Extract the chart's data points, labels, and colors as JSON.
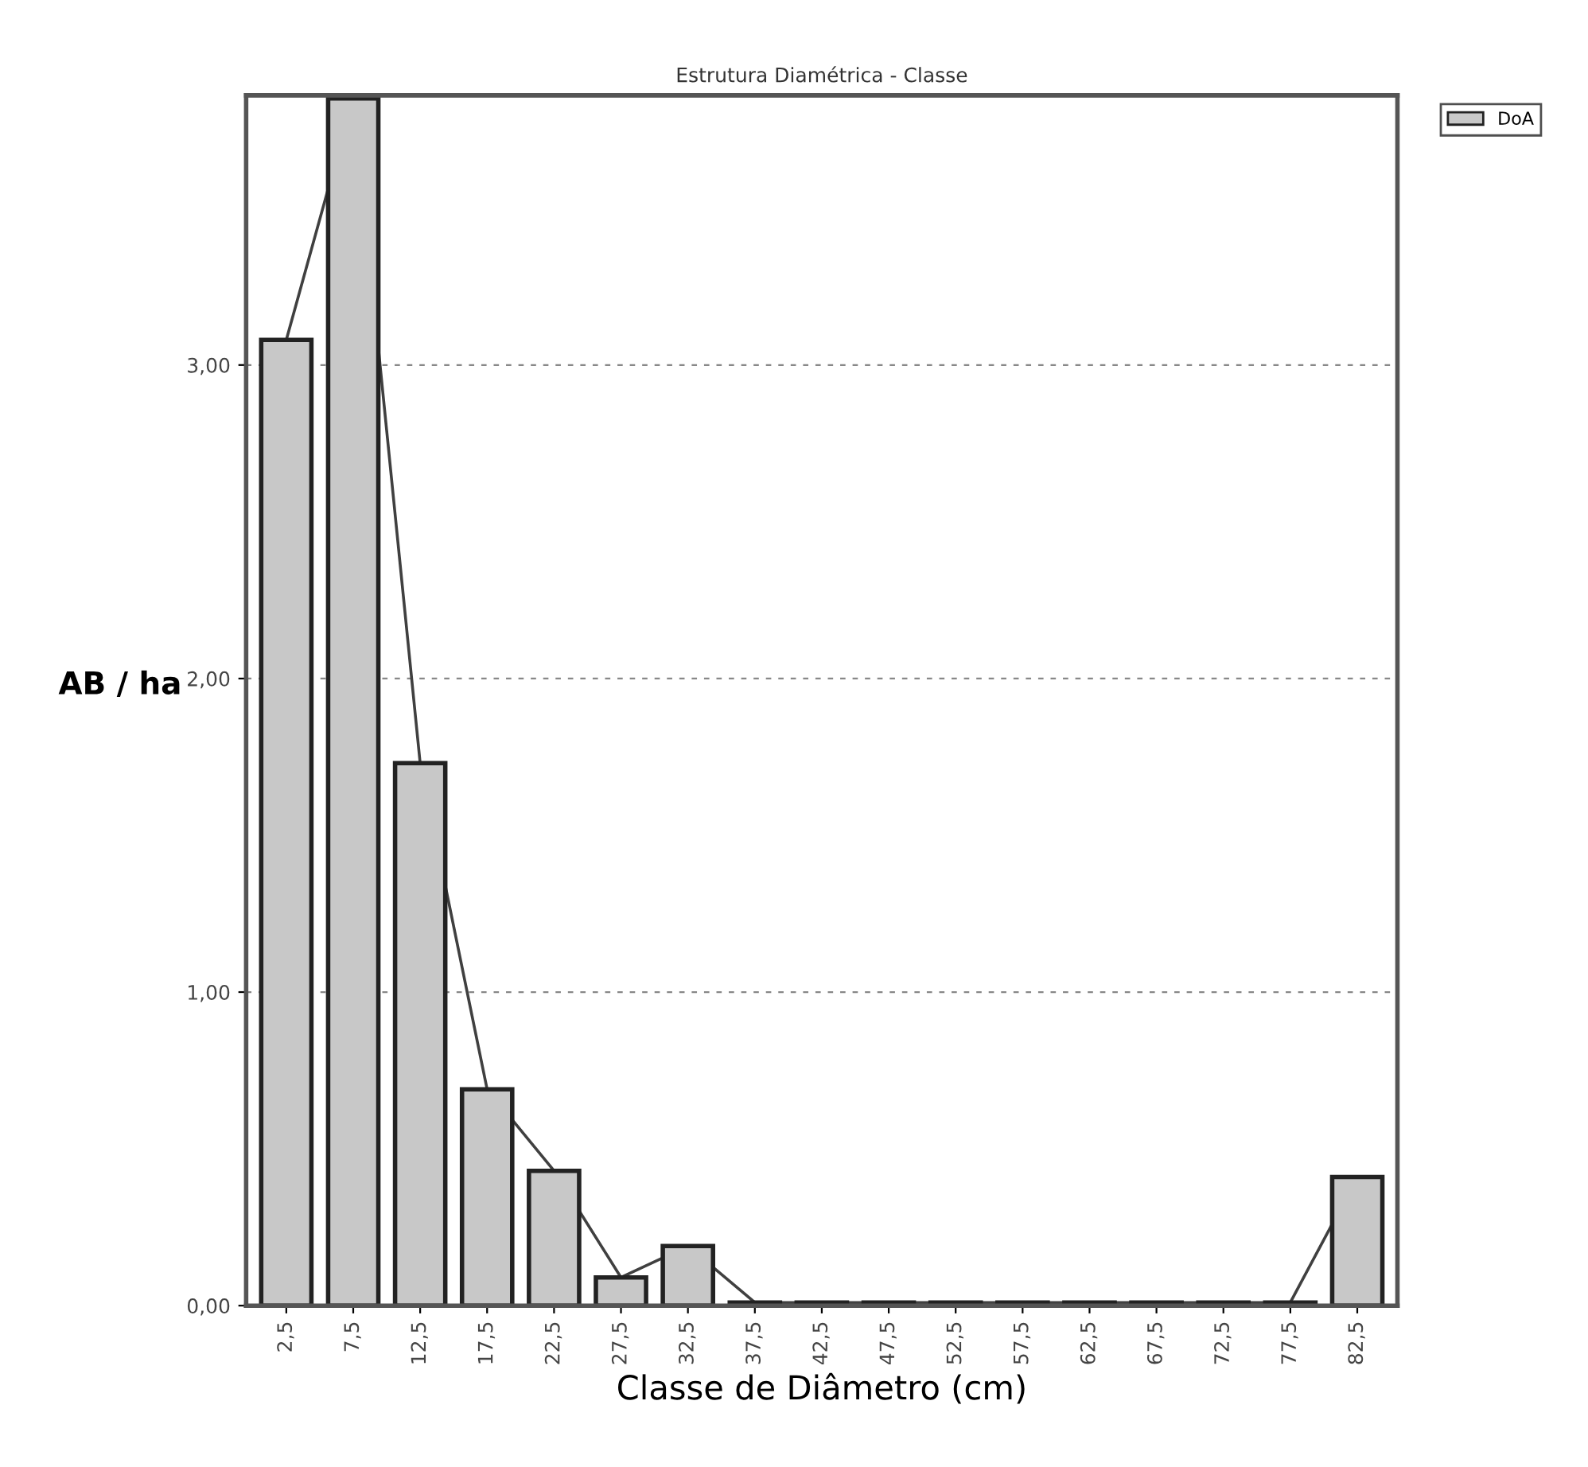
{
  "chart_data": {
    "type": "bar",
    "title": "Estrutura Diamétrica - Classe",
    "xlabel": "Classe de Diâmetro (cm)",
    "ylabel": "AB / ha",
    "categories": [
      "2,5",
      "7,5",
      "12,5",
      "17,5",
      "22,5",
      "27,5",
      "32,5",
      "37,5",
      "42,5",
      "47,5",
      "52,5",
      "57,5",
      "62,5",
      "67,5",
      "72,5",
      "77,5",
      "82,5"
    ],
    "series": [
      {
        "name": "DoA",
        "color": "#c8c8c8",
        "values": [
          3.08,
          3.85,
          1.73,
          0.69,
          0.43,
          0.09,
          0.19,
          0.01,
          0.01,
          0.01,
          0.01,
          0.01,
          0.01,
          0.01,
          0.01,
          0.01,
          0.41
        ]
      },
      {
        "type": "line",
        "color": "#404040",
        "values": [
          3.08,
          3.85,
          1.73,
          0.69,
          0.43,
          0.09,
          0.19,
          0.01,
          0.01,
          0.01,
          0.01,
          0.01,
          0.01,
          0.01,
          0.01,
          0.01,
          0.41
        ]
      }
    ],
    "ylim": [
      0,
      3.86
    ],
    "yticks": [
      {
        "value": 0,
        "label": "0,00"
      },
      {
        "value": 1,
        "label": "1,00"
      },
      {
        "value": 2,
        "label": "2,00"
      },
      {
        "value": 3,
        "label": "3,00"
      }
    ],
    "grid": "y",
    "legend": "top right"
  }
}
